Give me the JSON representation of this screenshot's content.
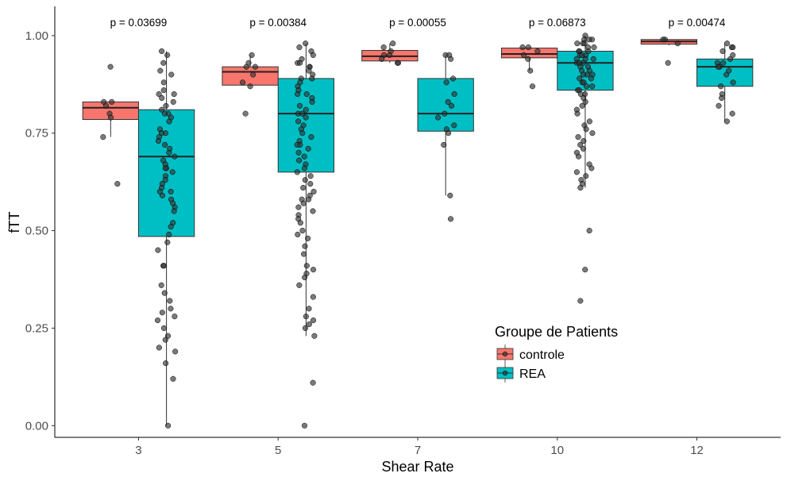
{
  "chart_data": {
    "type": "boxplot",
    "title": "",
    "xlabel": "Shear Rate",
    "ylabel": "fTT",
    "categories": [
      "3",
      "5",
      "7",
      "10",
      "12"
    ],
    "ylim": [
      -0.03,
      1.075
    ],
    "yticks": [
      0.0,
      0.25,
      0.5,
      0.75,
      1.0
    ],
    "ytick_labels": [
      "0.00",
      "0.25",
      "0.50",
      "0.75",
      "1.00"
    ],
    "grid": false,
    "legend": {
      "title": "Groupe de Patients",
      "position": "inside-bottom-right",
      "entries": [
        "controle",
        "REA"
      ]
    },
    "colors": {
      "controle": "#F8766D",
      "REA": "#00BFC4",
      "points": "#333333"
    },
    "pvalues": [
      "p = 0.03699",
      "p = 0.00384",
      "p = 0.00055",
      "p = 0.06873",
      "p = 0.00474"
    ],
    "series": [
      {
        "name": "controle",
        "boxes": [
          {
            "min": 0.74,
            "q1": 0.785,
            "median": 0.815,
            "q3": 0.83,
            "max": 0.83
          },
          {
            "min": 0.87,
            "q1": 0.873,
            "median": 0.907,
            "q3": 0.92,
            "max": 0.95
          },
          {
            "min": 0.93,
            "q1": 0.935,
            "median": 0.947,
            "q3": 0.962,
            "max": 0.98
          },
          {
            "min": 0.91,
            "q1": 0.943,
            "median": 0.953,
            "q3": 0.968,
            "max": 0.97
          },
          {
            "min": 0.975,
            "q1": 0.978,
            "median": 0.985,
            "q3": 0.99,
            "max": 0.99
          }
        ],
        "points": [
          [
            0.92,
            0.83,
            0.83,
            0.82,
            0.8,
            0.79,
            0.74,
            0.62
          ],
          [
            0.95,
            0.93,
            0.92,
            0.92,
            0.9,
            0.88,
            0.87,
            0.8
          ],
          [
            0.98,
            0.97,
            0.96,
            0.95,
            0.95,
            0.94,
            0.93,
            0.93
          ],
          [
            0.97,
            0.97,
            0.96,
            0.95,
            0.94,
            0.91,
            0.87
          ],
          [
            0.99,
            0.99,
            0.98,
            0.93
          ]
        ]
      },
      {
        "name": "REA",
        "boxes": [
          {
            "min": 0.0,
            "q1": 0.485,
            "median": 0.69,
            "q3": 0.81,
            "max": 0.96
          },
          {
            "min": 0.23,
            "q1": 0.65,
            "median": 0.8,
            "q3": 0.89,
            "max": 0.98
          },
          {
            "min": 0.59,
            "q1": 0.755,
            "median": 0.8,
            "q3": 0.89,
            "max": 0.95
          },
          {
            "min": 0.61,
            "q1": 0.86,
            "median": 0.93,
            "q3": 0.96,
            "max": 1.0
          },
          {
            "min": 0.78,
            "q1": 0.87,
            "median": 0.92,
            "q3": 0.94,
            "max": 0.98
          }
        ],
        "points": [
          [
            0.96,
            0.95,
            0.93,
            0.91,
            0.9,
            0.88,
            0.86,
            0.85,
            0.85,
            0.84,
            0.83,
            0.82,
            0.81,
            0.8,
            0.8,
            0.79,
            0.78,
            0.76,
            0.75,
            0.75,
            0.74,
            0.73,
            0.72,
            0.71,
            0.7,
            0.69,
            0.68,
            0.67,
            0.66,
            0.66,
            0.65,
            0.64,
            0.63,
            0.62,
            0.61,
            0.6,
            0.6,
            0.59,
            0.58,
            0.57,
            0.56,
            0.55,
            0.52,
            0.51,
            0.49,
            0.47,
            0.45,
            0.41,
            0.41,
            0.36,
            0.34,
            0.32,
            0.3,
            0.29,
            0.28,
            0.27,
            0.25,
            0.23,
            0.22,
            0.2,
            0.19,
            0.16,
            0.12,
            0.0
          ],
          [
            0.98,
            0.97,
            0.96,
            0.95,
            0.94,
            0.93,
            0.93,
            0.92,
            0.92,
            0.91,
            0.9,
            0.89,
            0.89,
            0.88,
            0.87,
            0.86,
            0.85,
            0.85,
            0.84,
            0.83,
            0.82,
            0.81,
            0.8,
            0.8,
            0.79,
            0.78,
            0.77,
            0.76,
            0.75,
            0.74,
            0.73,
            0.72,
            0.72,
            0.71,
            0.7,
            0.69,
            0.68,
            0.67,
            0.66,
            0.65,
            0.64,
            0.63,
            0.62,
            0.61,
            0.6,
            0.59,
            0.58,
            0.58,
            0.57,
            0.56,
            0.55,
            0.54,
            0.53,
            0.52,
            0.5,
            0.49,
            0.48,
            0.46,
            0.44,
            0.41,
            0.4,
            0.39,
            0.38,
            0.36,
            0.33,
            0.3,
            0.28,
            0.27,
            0.26,
            0.25,
            0.23,
            0.11,
            0.0
          ],
          [
            0.95,
            0.95,
            0.94,
            0.89,
            0.88,
            0.85,
            0.83,
            0.82,
            0.8,
            0.79,
            0.77,
            0.76,
            0.75,
            0.72,
            0.59,
            0.53
          ],
          [
            1.0,
            0.99,
            0.99,
            0.99,
            0.98,
            0.98,
            0.98,
            0.97,
            0.97,
            0.96,
            0.96,
            0.96,
            0.95,
            0.95,
            0.95,
            0.94,
            0.94,
            0.94,
            0.93,
            0.93,
            0.93,
            0.92,
            0.92,
            0.91,
            0.91,
            0.9,
            0.9,
            0.9,
            0.89,
            0.89,
            0.88,
            0.88,
            0.87,
            0.87,
            0.86,
            0.86,
            0.85,
            0.85,
            0.84,
            0.83,
            0.82,
            0.81,
            0.8,
            0.78,
            0.77,
            0.76,
            0.75,
            0.74,
            0.73,
            0.72,
            0.71,
            0.7,
            0.69,
            0.67,
            0.66,
            0.65,
            0.64,
            0.63,
            0.62,
            0.61,
            0.5,
            0.4,
            0.32
          ],
          [
            0.98,
            0.97,
            0.97,
            0.96,
            0.95,
            0.94,
            0.93,
            0.93,
            0.92,
            0.92,
            0.91,
            0.9,
            0.88,
            0.87,
            0.85,
            0.84,
            0.82,
            0.8,
            0.78
          ]
        ]
      }
    ]
  }
}
